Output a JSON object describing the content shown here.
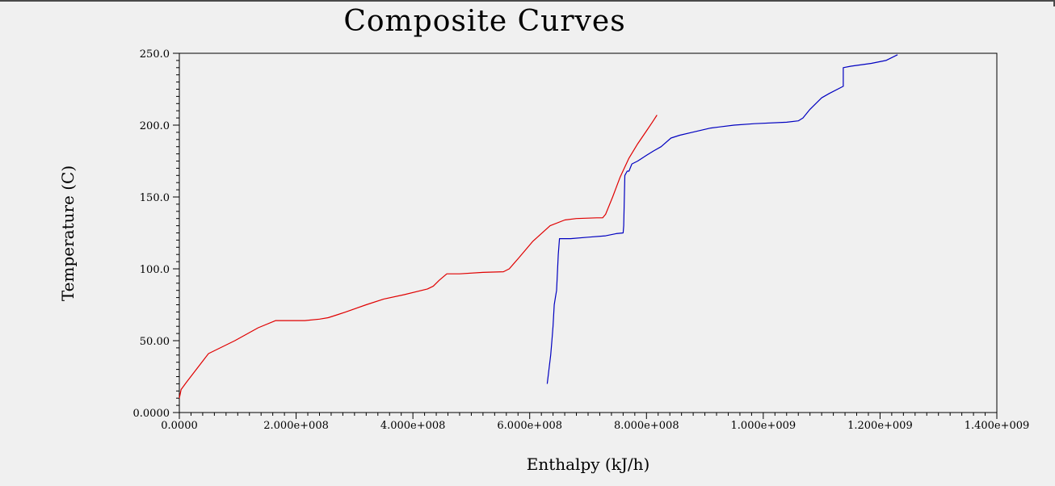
{
  "chart_data": {
    "type": "line",
    "title": "Composite Curves",
    "xlabel": "Enthalpy (kJ/h)",
    "ylabel": "Temperature (C)",
    "xlim": [
      0,
      1400000000
    ],
    "ylim": [
      0,
      250
    ],
    "x_ticks": [
      0,
      200000000,
      400000000,
      600000000,
      800000000,
      1000000000,
      1200000000,
      1400000000
    ],
    "x_tick_labels": [
      "0.0000",
      "2.000e+008",
      "4.000e+008",
      "6.000e+008",
      "8.000e+008",
      "1.000e+009",
      "1.200e+009",
      "1.400e+009"
    ],
    "y_ticks": [
      0,
      50,
      100,
      150,
      200,
      250
    ],
    "y_tick_labels": [
      "0.0000",
      "50.00",
      "100.0",
      "150.0",
      "200.0",
      "250.0"
    ],
    "grid": false,
    "series": [
      {
        "color": "#e00000",
        "x": [
          0,
          3000000,
          12000000,
          50000000,
          95000000,
          135000000,
          165000000,
          185000000,
          215000000,
          240000000,
          255000000,
          270000000,
          285000000,
          320000000,
          350000000,
          385000000,
          425000000,
          435000000,
          445000000,
          458000000,
          480000000,
          520000000,
          555000000,
          565000000,
          580000000,
          605000000,
          635000000,
          660000000,
          680000000,
          715000000,
          725000000,
          730000000,
          742000000,
          755000000,
          770000000,
          785000000,
          800000000,
          810000000,
          818000000
        ],
        "y": [
          10,
          16,
          21,
          41,
          50,
          59,
          64,
          64,
          64,
          65,
          66,
          68,
          70,
          75,
          79,
          82,
          86,
          88,
          92,
          96.5,
          96.5,
          97.5,
          98,
          100,
          107,
          119,
          130,
          134,
          135,
          135.5,
          135.5,
          138,
          150,
          164,
          177,
          187,
          196,
          202,
          207
        ]
      },
      {
        "color": "#0000c0",
        "x": [
          630000000,
          636000000,
          638000000,
          640000000,
          642000000,
          644000000,
          646000000,
          649000000,
          651000000,
          654000000,
          670000000,
          700000000,
          730000000,
          748000000,
          760000000,
          761000000,
          763000000,
          767000000,
          770000000,
          775000000,
          785000000,
          800000000,
          812000000,
          825000000,
          842000000,
          857000000,
          878000000,
          910000000,
          950000000,
          985000000,
          1040000000,
          1060000000,
          1068000000,
          1080000000,
          1100000000,
          1113000000,
          1137000000,
          1137000000,
          1150000000,
          1185000000,
          1210000000,
          1230000000
        ],
        "y": [
          20,
          40,
          50,
          60,
          75,
          80,
          85,
          110,
          121,
          121,
          121,
          122,
          123,
          124.5,
          125,
          130,
          165,
          168,
          168,
          173,
          175,
          179,
          182,
          185,
          191,
          193,
          195,
          198,
          200,
          201,
          202,
          203,
          205,
          211,
          219,
          222,
          227,
          240,
          241,
          243,
          245,
          249
        ]
      }
    ]
  }
}
